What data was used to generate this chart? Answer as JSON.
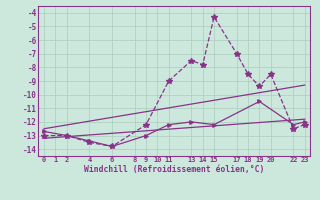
{
  "xlabel": "Windchill (Refroidissement éolien,°C)",
  "background_color": "#cce8dd",
  "grid_color": "#aaccbb",
  "line_color": "#883388",
  "xlim": [
    -0.5,
    23.5
  ],
  "ylim": [
    -14.5,
    -3.5
  ],
  "xticks": [
    0,
    1,
    2,
    4,
    6,
    8,
    9,
    10,
    11,
    13,
    14,
    15,
    17,
    18,
    19,
    20,
    22,
    23
  ],
  "yticks": [
    -4,
    -5,
    -6,
    -7,
    -8,
    -9,
    -10,
    -11,
    -12,
    -13,
    -14
  ],
  "line1_x": [
    0,
    2,
    4,
    6,
    9,
    11,
    13,
    14,
    15,
    17,
    18,
    19,
    20,
    22,
    23
  ],
  "line1_y": [
    -13.0,
    -13.0,
    -13.5,
    -13.8,
    -12.2,
    -9.0,
    -7.5,
    -7.8,
    -4.3,
    -7.0,
    -8.5,
    -9.4,
    -8.5,
    -12.5,
    -12.2
  ],
  "line2_x": [
    0,
    23
  ],
  "line2_y": [
    -12.5,
    -9.3
  ],
  "line3_x": [
    0,
    23
  ],
  "line3_y": [
    -13.2,
    -11.8
  ],
  "line4_x": [
    0,
    2,
    4,
    6,
    9,
    11,
    13,
    15,
    19,
    22,
    23
  ],
  "line4_y": [
    -12.7,
    -13.0,
    -13.4,
    -13.8,
    -13.0,
    -12.2,
    -12.0,
    -12.2,
    -10.5,
    -12.2,
    -12.0
  ]
}
